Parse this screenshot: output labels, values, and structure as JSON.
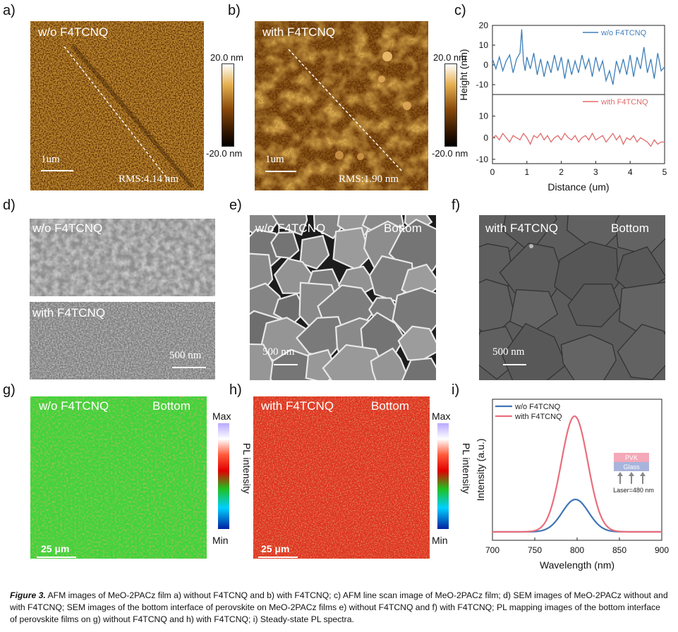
{
  "panel_labels": {
    "a": "a)",
    "b": "b)",
    "c": "c)",
    "d": "d)",
    "e": "e)",
    "f": "f)",
    "g": "g)",
    "h": "h)",
    "i": "i)"
  },
  "afm": {
    "a": {
      "label": "w/o F4TCNQ",
      "scale": "1um",
      "rms": "RMS:4.14 nm"
    },
    "b": {
      "label": "with F4TCNQ",
      "scale": "1um",
      "rms": "RMS:1.90 nm"
    },
    "colorbar_top": "20.0 nm",
    "colorbar_bottom": "-20.0 nm",
    "colors": {
      "afm_dark": "#3a1c00",
      "afm_mid": "#8a4a0a",
      "afm_light": "#e0a040"
    }
  },
  "sem": {
    "d_top": "w/o F4TCNQ",
    "d_bottom": "with F4TCNQ",
    "d_scale": "500 nm",
    "e_label": "w/o F4TCNQ",
    "e_side": "Bottom",
    "e_scale": "500 nm",
    "f_label": "with F4TCNQ",
    "f_side": "Bottom",
    "f_scale": "500 nm"
  },
  "pl_map": {
    "g_label": "w/o F4TCNQ",
    "g_side": "Bottom",
    "g_scale": "25 μm",
    "h_label": "with F4TCNQ",
    "h_side": "Bottom",
    "h_scale": "25 μm",
    "cbar_max": "Max",
    "cbar_min": "Min",
    "cbar_title": "PL intensity"
  },
  "chart_data": [
    {
      "panel": "c",
      "type": "line",
      "xlabel": "Distance (um)",
      "ylabel": "Height (nm)",
      "xlim": [
        0,
        5
      ],
      "xticks": [
        0,
        1,
        2,
        3,
        4,
        5
      ],
      "subplots": [
        {
          "ylim": [
            -15,
            20
          ],
          "yticks": [
            -10,
            0,
            10,
            20
          ],
          "series": [
            {
              "name": "w/o F4TCNQ",
              "color": "#3e7fb8",
              "x": [
                0,
                0.1,
                0.2,
                0.3,
                0.4,
                0.5,
                0.6,
                0.7,
                0.8,
                0.85,
                0.9,
                0.95,
                1.0,
                1.1,
                1.2,
                1.3,
                1.4,
                1.5,
                1.6,
                1.7,
                1.8,
                1.9,
                2.0,
                2.1,
                2.2,
                2.3,
                2.4,
                2.5,
                2.6,
                2.7,
                2.8,
                2.9,
                3.0,
                3.1,
                3.2,
                3.3,
                3.4,
                3.5,
                3.6,
                3.7,
                3.8,
                3.9,
                4.0,
                4.1,
                4.2,
                4.3,
                4.4,
                4.5,
                4.6,
                4.7,
                4.8,
                4.9,
                5.0
              ],
              "y": [
                3,
                -2,
                4,
                -3,
                2,
                5,
                -4,
                3,
                6,
                18,
                2,
                -3,
                4,
                -2,
                6,
                -5,
                3,
                -6,
                2,
                -4,
                5,
                -3,
                4,
                -7,
                3,
                -5,
                2,
                -4,
                5,
                -2,
                3,
                -6,
                4,
                -3,
                2,
                -8,
                -3,
                -10,
                2,
                -4,
                3,
                -5,
                5,
                -6,
                4,
                -2,
                9,
                -4,
                3,
                -7,
                6,
                -3,
                -1
              ]
            }
          ]
        },
        {
          "ylim": [
            -12,
            20
          ],
          "yticks": [
            -10,
            0,
            10
          ],
          "series": [
            {
              "name": "with F4TCNQ",
              "color": "#e06a6a",
              "x": [
                0,
                0.1,
                0.2,
                0.3,
                0.4,
                0.5,
                0.6,
                0.7,
                0.8,
                0.9,
                1.0,
                1.1,
                1.2,
                1.3,
                1.4,
                1.5,
                1.6,
                1.7,
                1.8,
                1.9,
                2.0,
                2.1,
                2.2,
                2.3,
                2.4,
                2.5,
                2.6,
                2.7,
                2.8,
                2.9,
                3.0,
                3.1,
                3.2,
                3.3,
                3.4,
                3.5,
                3.6,
                3.7,
                3.8,
                3.9,
                4.0,
                4.1,
                4.2,
                4.3,
                4.4,
                4.5,
                4.6,
                4.7,
                4.8,
                4.9,
                5.0
              ],
              "y": [
                0,
                1,
                -1,
                2,
                0,
                -2,
                1,
                0,
                -1,
                2,
                0,
                -3,
                1,
                0,
                2,
                -1,
                1,
                -2,
                0,
                1,
                -1,
                2,
                0,
                -1,
                1,
                -2,
                0,
                1,
                -1,
                2,
                -1,
                0,
                1,
                -2,
                0,
                2,
                -1,
                1,
                -3,
                0,
                -1,
                1,
                -2,
                0,
                -1,
                -2,
                -4,
                -1,
                -3,
                -2,
                -2
              ]
            }
          ]
        }
      ]
    },
    {
      "panel": "i",
      "type": "line",
      "xlabel": "Wavelength (nm)",
      "ylabel": "Intensity (a.u.)",
      "xlim": [
        700,
        900
      ],
      "xticks": [
        700,
        750,
        800,
        850,
        900
      ],
      "series": [
        {
          "name": "w/o F4TCNQ",
          "color": "#3e74b6",
          "peak_x": 798,
          "peak": 0.28,
          "width": 22
        },
        {
          "name": "with F4TCNQ",
          "color": "#ea6e7c",
          "peak_x": 797,
          "peak": 1.0,
          "width": 22
        }
      ],
      "inset": {
        "top_layer": "PVK",
        "bottom_layer": "Glass",
        "laser": "Laser=480 nm",
        "colors": {
          "pvk": "#f4a8b8",
          "glass": "#a8b4dc",
          "arrow": "#888888"
        }
      }
    }
  ],
  "caption": {
    "fig": "Figure 3.",
    "text": " AFM images of MeO-2PACz film a) without F4TCNQ and b) with F4TCNQ; c) AFM line scan image of MeO-2PACz film; d) SEM images of MeO-2PACz without and with F4TCNQ; SEM images of the bottom interface of perovskite on MeO-2PACz films e) without F4TCNQ and f) with F4TCNQ; PL mapping images of the bottom interface of perovskite films on g) without F4TCNQ and h) with F4TCNQ; i) Steady-state PL spectra."
  }
}
